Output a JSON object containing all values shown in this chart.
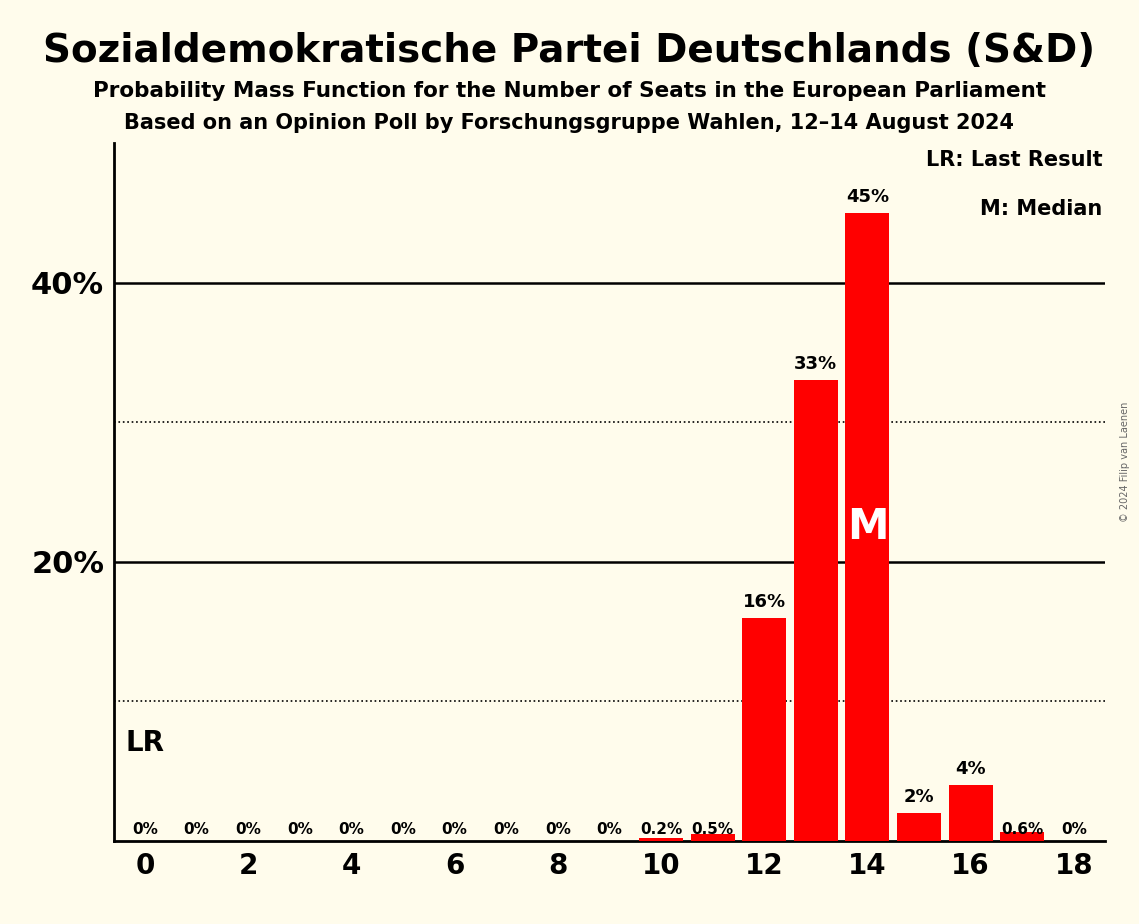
{
  "title": "Sozialdemokratische Partei Deutschlands (S&D)",
  "subtitle1": "Probability Mass Function for the Number of Seats in the European Parliament",
  "subtitle2": "Based on an Opinion Poll by Forschungsgruppe Wahlen, 12–14 August 2024",
  "copyright": "© 2024 Filip van Laenen",
  "seats": [
    0,
    1,
    2,
    3,
    4,
    5,
    6,
    7,
    8,
    9,
    10,
    11,
    12,
    13,
    14,
    15,
    16,
    17,
    18
  ],
  "probabilities": [
    0,
    0,
    0,
    0,
    0,
    0,
    0,
    0,
    0,
    0,
    0.2,
    0.5,
    16,
    33,
    45,
    2,
    4,
    0.6,
    0
  ],
  "bar_color": "#ff0000",
  "bg_color": "#fffcec",
  "text_color": "#000000",
  "LR_seat": 11,
  "median_seat": 14,
  "ylim": [
    0,
    50
  ],
  "solid_ylines": [
    20,
    40
  ],
  "dotted_ylines": [
    10,
    30
  ],
  "legend_lr": "LR: Last Result",
  "legend_m": "M: Median"
}
